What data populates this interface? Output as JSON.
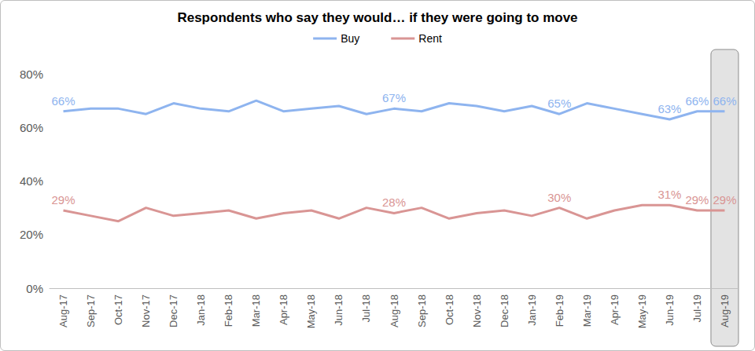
{
  "chart_data": {
    "type": "line",
    "title": "Respondents who say they would… if they were going to move",
    "categories": [
      "Aug-17",
      "Sep-17",
      "Oct-17",
      "Nov-17",
      "Dec-17",
      "Jan-18",
      "Feb-18",
      "Mar-18",
      "Apr-18",
      "May-18",
      "Jun-18",
      "Jul-18",
      "Aug-18",
      "Sep-18",
      "Oct-18",
      "Nov-18",
      "Dec-18",
      "Jan-19",
      "Feb-19",
      "Mar-19",
      "Apr-19",
      "May-19",
      "Jun-19",
      "Jul-19",
      "Aug-19"
    ],
    "series": [
      {
        "name": "Buy",
        "color": "#8eb4ef",
        "values": [
          66,
          67,
          67,
          65,
          69,
          67,
          66,
          70,
          66,
          67,
          68,
          65,
          67,
          66,
          69,
          68,
          66,
          68,
          65,
          69,
          67,
          65,
          63,
          66,
          66
        ],
        "value_labels": [
          "66%",
          null,
          null,
          null,
          null,
          null,
          null,
          null,
          null,
          null,
          null,
          null,
          "67%",
          null,
          null,
          null,
          null,
          null,
          "65%",
          null,
          null,
          null,
          "63%",
          "66%",
          "66%"
        ]
      },
      {
        "name": "Rent",
        "color": "#d99594",
        "values": [
          29,
          27,
          25,
          30,
          27,
          28,
          29,
          26,
          28,
          29,
          26,
          30,
          28,
          30,
          26,
          28,
          29,
          27,
          30,
          26,
          29,
          31,
          31,
          29,
          29
        ],
        "value_labels": [
          "29%",
          null,
          null,
          null,
          null,
          null,
          null,
          null,
          null,
          null,
          null,
          null,
          "28%",
          null,
          null,
          null,
          null,
          null,
          "30%",
          null,
          null,
          null,
          "31%",
          "29%",
          "29%"
        ]
      }
    ],
    "ylim": [
      0,
      80
    ],
    "yticks": [
      {
        "value": 0,
        "label": "0%"
      },
      {
        "value": 20,
        "label": "20%"
      },
      {
        "value": 40,
        "label": "40%"
      },
      {
        "value": 60,
        "label": "60%"
      },
      {
        "value": 80,
        "label": "80%"
      }
    ],
    "grid": false,
    "legend": "top",
    "data_labels": true
  }
}
